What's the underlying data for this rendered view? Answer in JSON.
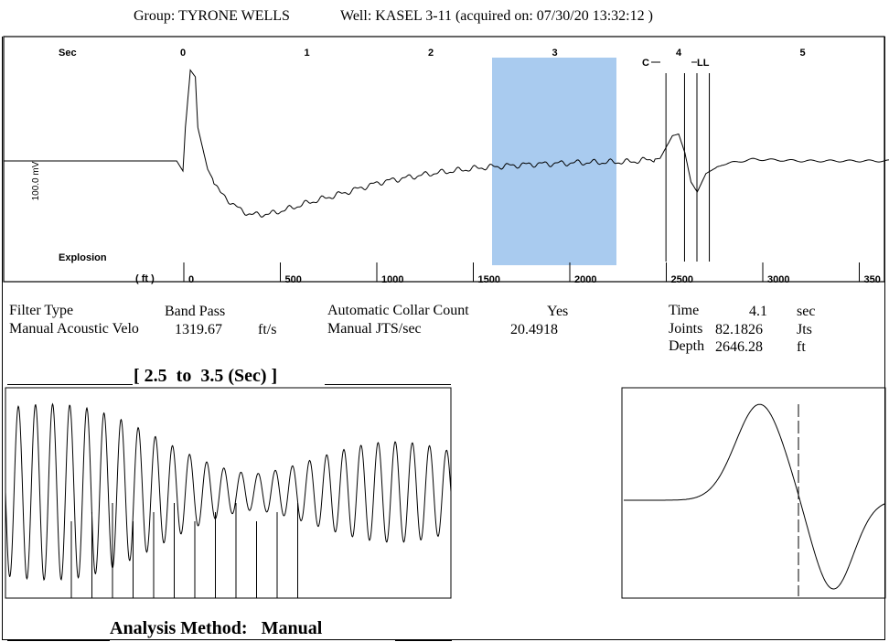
{
  "header": {
    "group_label": "Group: TYRONE WELLS",
    "well_label": "Well: KASEL 3-11 (acquired on: 07/30/20 13:32:12 )"
  },
  "main_plot": {
    "sec_label": "Sec",
    "explosion_label": "Explosion",
    "ft_label": "( ft )",
    "y_label": "100.0 mV",
    "marker_c": "C",
    "marker_ll": "LL",
    "highlight_color": "#a9cbef"
  },
  "chart_data": [
    {
      "type": "line",
      "title": "",
      "xlabel": "Sec",
      "ylabel": "100.0 mV",
      "x_ticks_sec": [
        "0",
        "1",
        "2",
        "3",
        "4",
        "5"
      ],
      "x_ticks_ft": [
        "0",
        "500",
        "1000",
        "1500",
        "2000",
        "2500",
        "3000",
        "350"
      ],
      "xlim_sec": [
        -1.45,
        5.7
      ],
      "highlight_sec": [
        2.5,
        3.5
      ],
      "markers_sec": [
        3.75,
        3.9,
        4.0,
        4.1
      ],
      "shape_points_sec_mv": [
        [
          -1.45,
          0
        ],
        [
          -0.05,
          0
        ],
        [
          0,
          -12
        ],
        [
          0.02,
          40
        ],
        [
          0.06,
          108
        ],
        [
          0.1,
          100
        ],
        [
          0.12,
          40
        ],
        [
          0.2,
          -10
        ],
        [
          0.3,
          -38
        ],
        [
          0.45,
          -57
        ],
        [
          0.55,
          -64
        ],
        [
          0.7,
          -63
        ],
        [
          0.85,
          -57
        ],
        [
          1.0,
          -50
        ],
        [
          1.3,
          -38
        ],
        [
          1.6,
          -25
        ],
        [
          2.0,
          -15
        ],
        [
          2.4,
          -8
        ],
        [
          2.8,
          -4
        ],
        [
          3.2,
          -2
        ],
        [
          3.6,
          -1
        ],
        [
          3.85,
          3
        ],
        [
          3.95,
          30
        ],
        [
          4.0,
          32
        ],
        [
          4.05,
          10
        ],
        [
          4.1,
          -25
        ],
        [
          4.15,
          -37
        ],
        [
          4.22,
          -15
        ],
        [
          4.35,
          -4
        ],
        [
          4.6,
          2
        ],
        [
          5.0,
          0
        ],
        [
          5.7,
          0
        ]
      ]
    },
    {
      "type": "line",
      "title": "[ 2.5  to  3.5 (Sec) ]",
      "x_range_sec": [
        2.5,
        3.5
      ],
      "peaks": 26,
      "vertical_markers": 12
    },
    {
      "type": "line",
      "title": "",
      "description_marker": "dashed vertical at zero crossing"
    }
  ],
  "info": {
    "filter_type_label": "Filter Type",
    "filter_type_value": "Band Pass",
    "velocity_label": "Manual Acoustic Velo",
    "velocity_value": "1319.67",
    "velocity_unit": "ft/s",
    "collar_label": "Automatic Collar Count",
    "collar_value": "Yes",
    "jts_label": "Manual JTS/sec",
    "jts_value": "20.4918",
    "time_label": "Time",
    "time_value": "4.1",
    "time_unit": "sec",
    "joints_label": "Joints",
    "joints_value": "82.1826",
    "joints_unit": "Jts",
    "depth_label": "Depth",
    "depth_value": "2646.28",
    "depth_unit": "ft"
  },
  "zoom_section": {
    "title": "[ 2.5  to  3.5 (Sec) ]"
  },
  "footer": {
    "analysis_label": "Analysis Method:   Manual"
  }
}
